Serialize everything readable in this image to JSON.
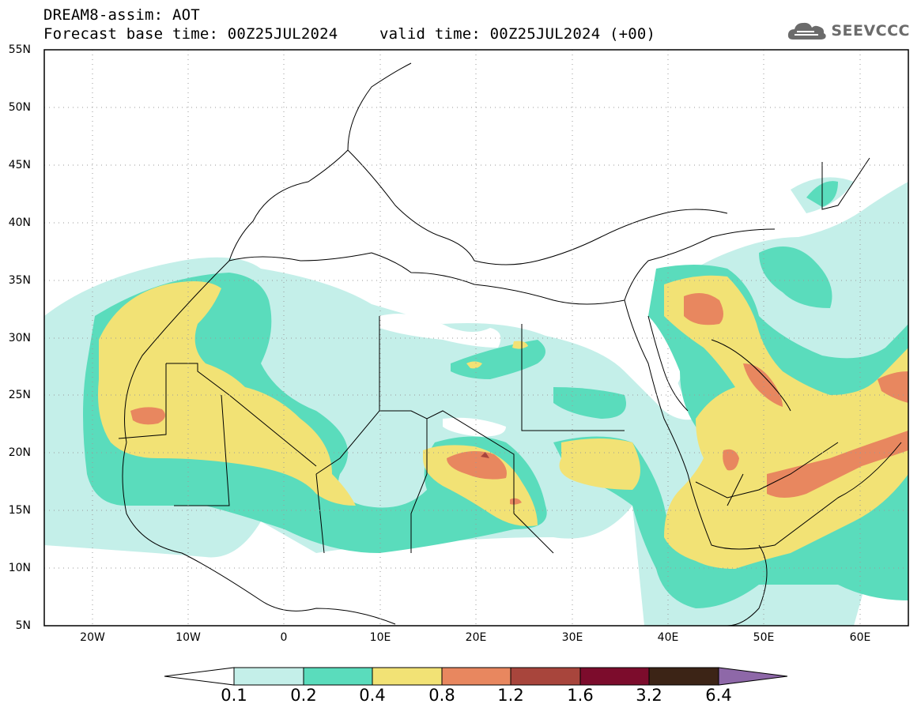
{
  "title": {
    "line1": "DREAM8-assim: AOT",
    "line2": "Forecast base time: 00Z25JUL2024",
    "line2b": "valid time: 00Z25JUL2024 (+00)"
  },
  "logo": {
    "text": "SEEVCCC",
    "icon": "cloud-icon"
  },
  "map": {
    "lat_labels": [
      "55N",
      "50N",
      "45N",
      "40N",
      "35N",
      "30N",
      "25N",
      "20N",
      "15N",
      "10N",
      "5N"
    ],
    "lon_labels": [
      "20W",
      "10W",
      "0",
      "10E",
      "20E",
      "30E",
      "40E",
      "50E",
      "60E"
    ],
    "lat_range": [
      5,
      55
    ],
    "lon_range": [
      -25,
      65
    ],
    "grid": "dotted"
  },
  "colorbar": {
    "labels": [
      "0.1",
      "0.2",
      "0.4",
      "0.8",
      "1.2",
      "1.6",
      "3.2",
      "6.4"
    ],
    "colors": [
      "#ffffff",
      "#c4efe9",
      "#5adcbc",
      "#f2e275",
      "#e8875f",
      "#a8453c",
      "#7c0c2c",
      "#3c2416",
      "#8e68a8"
    ]
  }
}
